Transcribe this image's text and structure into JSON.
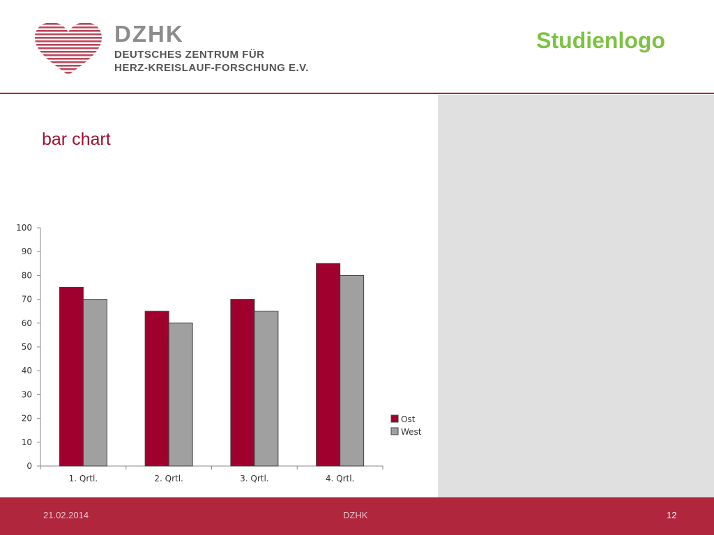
{
  "header": {
    "brand": "DZHK",
    "brand_line1": "DEUTSCHES ZENTRUM FÜR",
    "brand_line2": "HERZ-KREISLAUF-FORSCHUNG E.V.",
    "study_logo": "Studienlogo",
    "logo_icon": "heart-icon"
  },
  "slide": {
    "title": "bar chart"
  },
  "colors": {
    "accent": "#b0263d",
    "ost": "#a0002e",
    "west": "#a0a0a0",
    "study_logo": "#7dc243",
    "panel": "#e0e0e0"
  },
  "chart_data": {
    "type": "bar",
    "categories": [
      "1. Qrtl.",
      "2. Qrtl.",
      "3. Qrtl.",
      "4. Qrtl."
    ],
    "series": [
      {
        "name": "Ost",
        "values": [
          75,
          65,
          70,
          85
        ]
      },
      {
        "name": "West",
        "values": [
          70,
          60,
          65,
          80
        ]
      }
    ],
    "ylim": [
      0,
      100
    ],
    "yticks": [
      0,
      10,
      20,
      30,
      40,
      50,
      60,
      70,
      80,
      90,
      100
    ],
    "grid": false,
    "legend": "right"
  },
  "footer": {
    "date": "21.02.2014",
    "center": "DZHK",
    "page": "12"
  }
}
